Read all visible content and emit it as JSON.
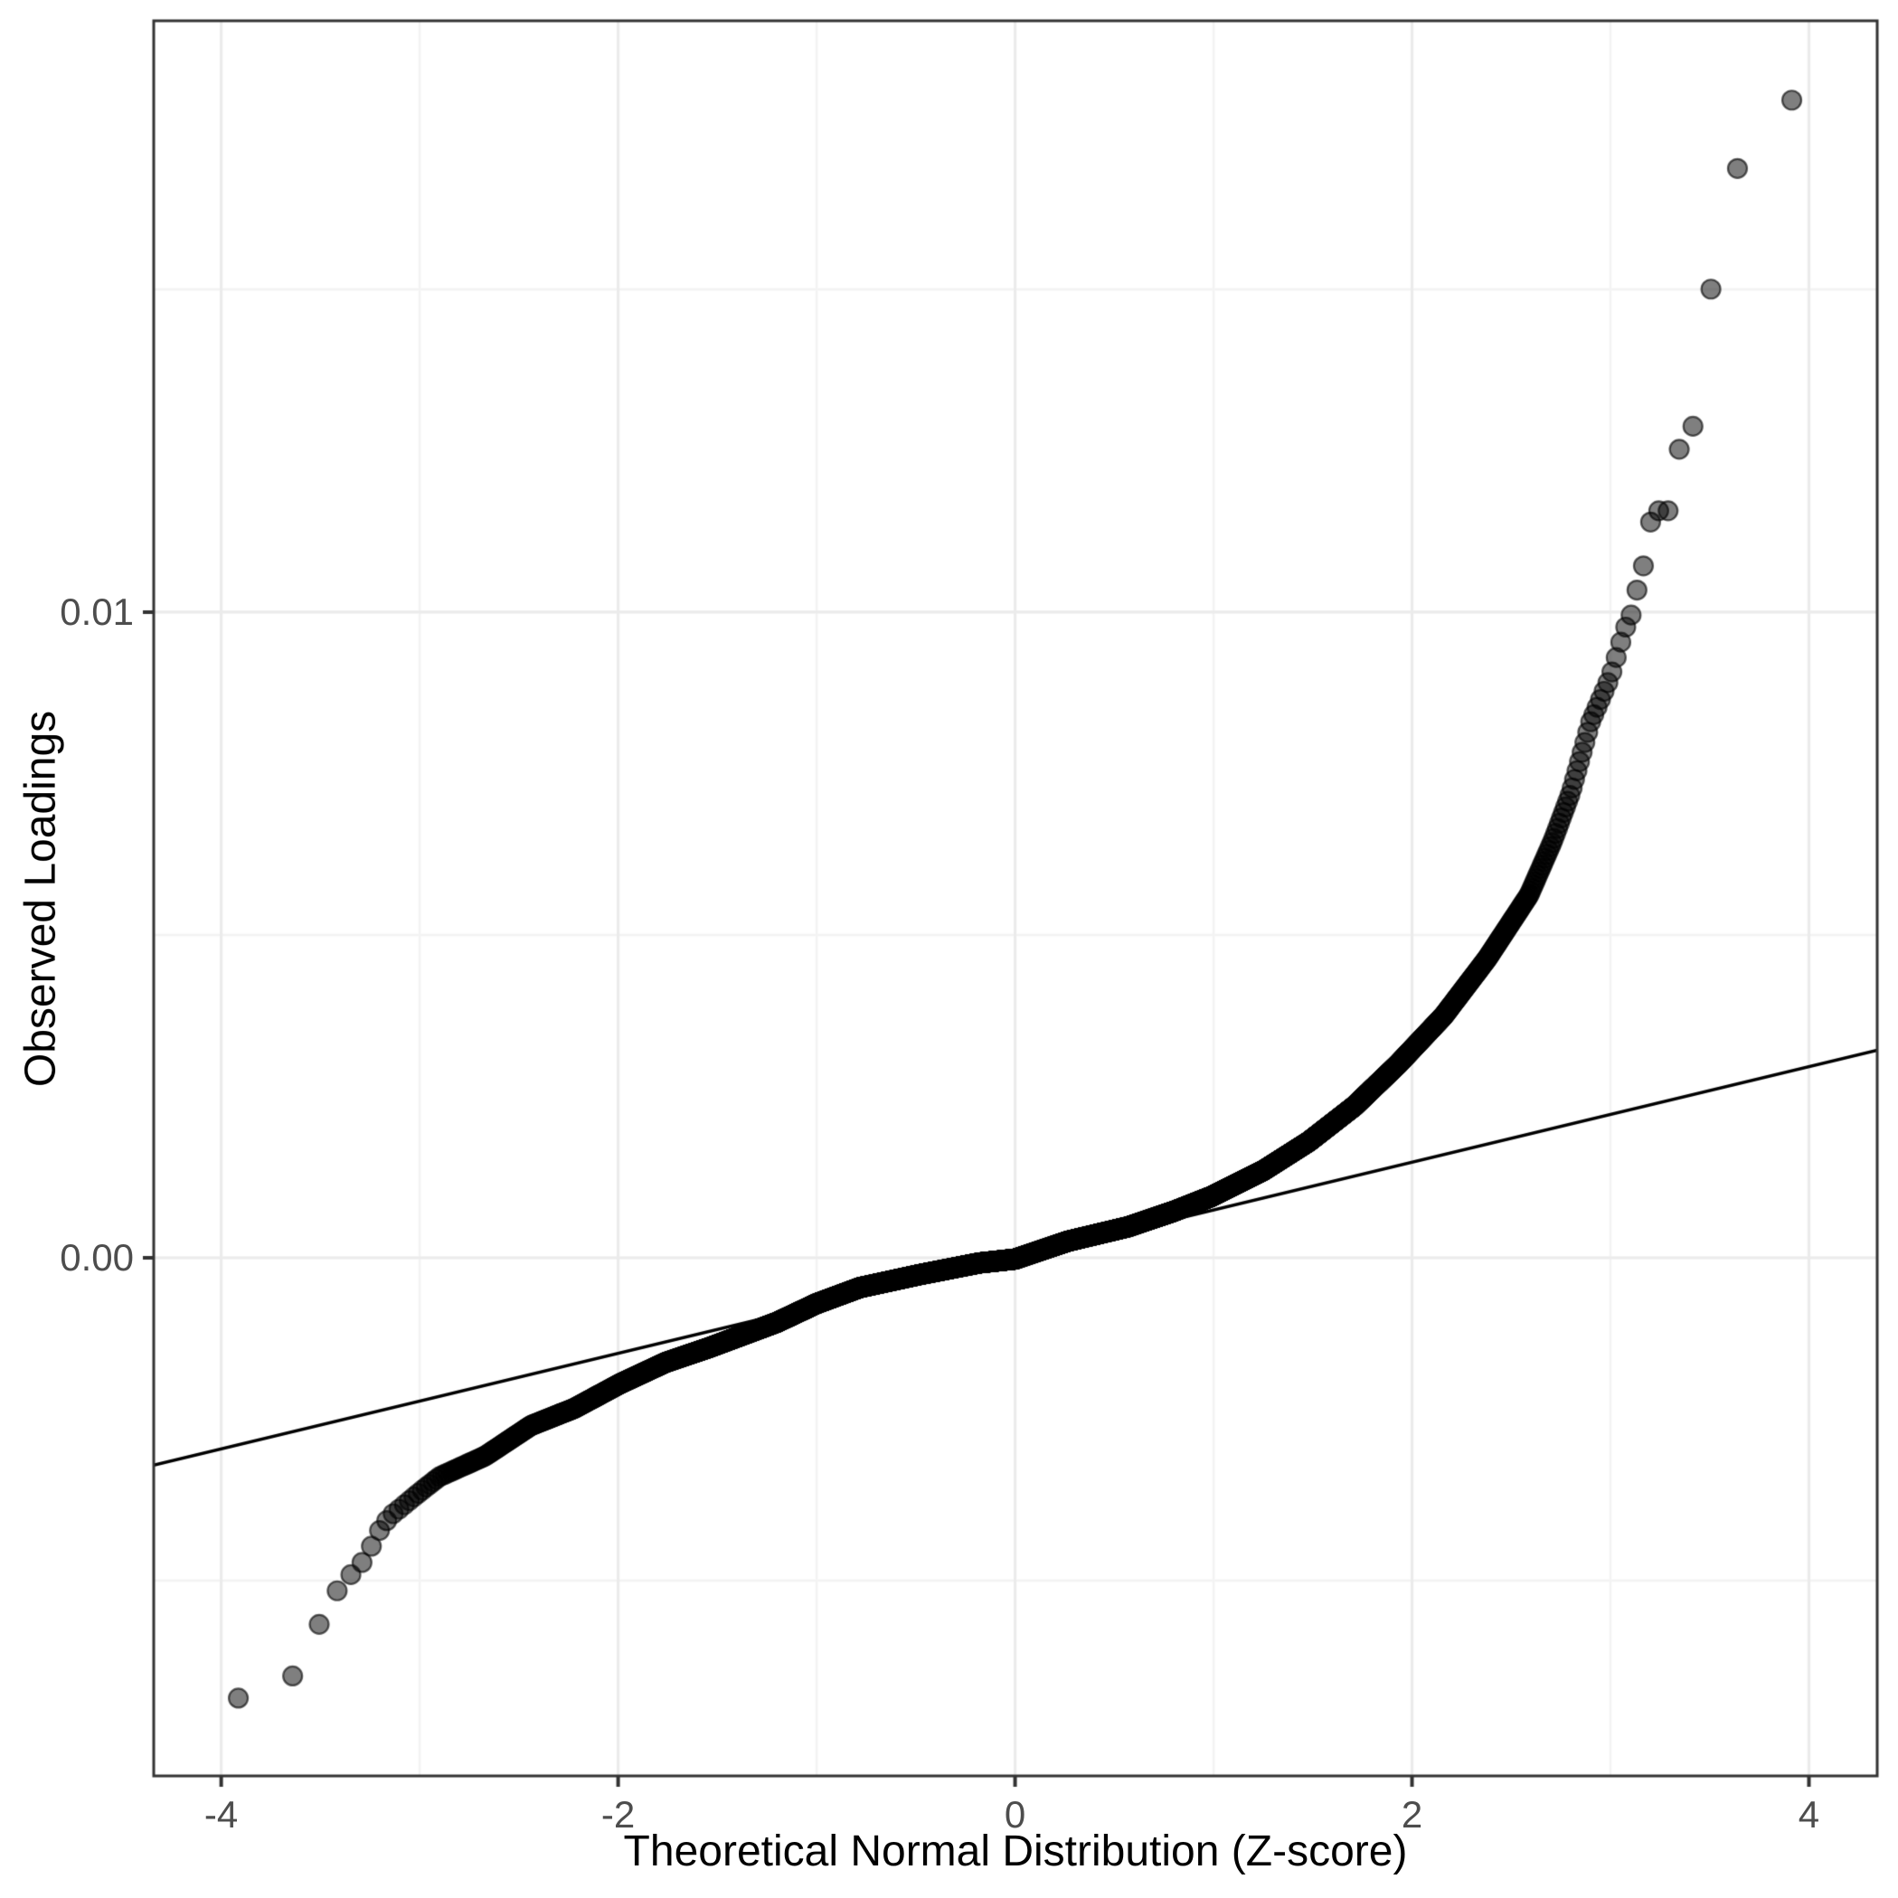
{
  "figure": {
    "background": "#ffffff"
  },
  "chart_data": {
    "type": "scatter",
    "subtype": "qq-plot",
    "title": "",
    "xlabel": "Theoretical Normal Distribution (Z-score)",
    "ylabel": "Observed Loadings",
    "x_breaks": [
      -4,
      -2,
      0,
      2,
      4
    ],
    "x_tick_labels": [
      "-4",
      "-2",
      "0",
      "2",
      "4"
    ],
    "x_minor_breaks": [
      -3,
      -1,
      1,
      3
    ],
    "y_breaks": [
      0.0,
      0.01
    ],
    "y_tick_labels": [
      "0.00",
      "0.01"
    ],
    "y_minor_breaks": [
      -0.005,
      0.005,
      0.015
    ],
    "xlim": [
      -4.34,
      4.344
    ],
    "ylim": [
      -0.008025,
      0.019159
    ],
    "grid": true,
    "legend": "none",
    "n_points": 11000,
    "reference_line": {
      "slope": 0.00074,
      "intercept": 0.0
    },
    "observed_quantile_curve": [
      [
        -3.9087,
        -0.00682
      ],
      [
        -3.6405,
        -0.00648
      ],
      [
        -3.5101,
        -0.0057
      ],
      [
        -3.4217,
        -0.00518
      ],
      [
        -3.354,
        -0.00493
      ],
      [
        -3.2986,
        -0.00476
      ],
      [
        -3.2516,
        -0.00452
      ],
      [
        -3.2105,
        -0.00426
      ],
      [
        -3.1739,
        -0.0041
      ],
      [
        -3.1408,
        -0.00398
      ],
      [
        -3.1105,
        -0.00391
      ],
      [
        -3.0,
        -0.00363
      ],
      [
        -2.9,
        -0.00339
      ],
      [
        -2.67,
        -0.00307
      ],
      [
        -2.44,
        -0.0026
      ],
      [
        -2.22,
        -0.00233
      ],
      [
        -1.99,
        -0.00195
      ],
      [
        -1.76,
        -0.00162
      ],
      [
        -1.54,
        -0.00139
      ],
      [
        -1.2,
        -0.001
      ],
      [
        -1.0,
        -0.00071
      ],
      [
        -0.78,
        -0.00046
      ],
      [
        -0.48,
        -0.00026
      ],
      [
        -0.18,
        -8e-05
      ],
      [
        0.0,
        -2e-05
      ],
      [
        0.27,
        0.00026
      ],
      [
        0.57,
        0.00048
      ],
      [
        0.8,
        0.00072
      ],
      [
        0.99,
        0.00095
      ],
      [
        1.25,
        0.00135
      ],
      [
        1.48,
        0.0018
      ],
      [
        1.71,
        0.00235
      ],
      [
        1.93,
        0.003
      ],
      [
        2.16,
        0.00375
      ],
      [
        2.38,
        0.00464
      ],
      [
        2.59,
        0.00562
      ],
      [
        2.71,
        0.00646
      ],
      [
        2.8,
        0.0072
      ],
      [
        2.9,
        0.0083
      ],
      [
        3.0,
        0.009
      ],
      [
        3.07,
        0.00972
      ],
      [
        3.1105,
        0.01
      ],
      [
        3.1408,
        0.01045
      ],
      [
        3.1739,
        0.0108
      ],
      [
        3.2105,
        0.01157
      ],
      [
        3.2516,
        0.01157
      ],
      [
        3.2986,
        0.01157
      ],
      [
        3.354,
        0.01267
      ],
      [
        3.4217,
        0.0129
      ],
      [
        3.5101,
        0.0151
      ],
      [
        3.6405,
        0.01688
      ],
      [
        3.9087,
        0.01793
      ]
    ],
    "style": {
      "panel_background": "#ffffff",
      "panel_border_color": "#333333",
      "grid_major_color": "#ebebeb",
      "grid_minor_color": "#f3f3f3",
      "tick_mark_color": "#333333",
      "tick_label_color": "#4d4d4d",
      "axis_title_color": "#000000",
      "point_fill": "rgba(0,0,0,0.50)",
      "point_stroke": "rgba(0,0,0,0.62)",
      "point_radius": 10.5,
      "point_stroke_width": 2.2,
      "line_color": "#000000",
      "line_width": 3.5
    }
  }
}
